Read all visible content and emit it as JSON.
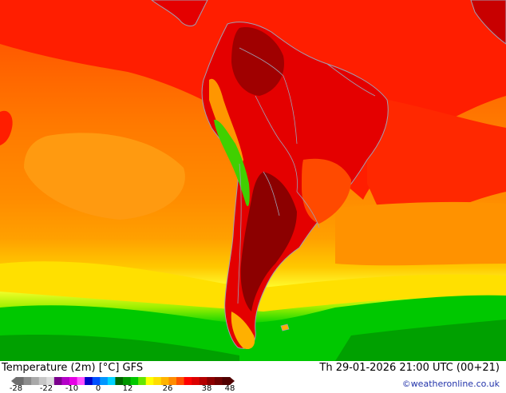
{
  "title": "Temperature (2m) [°C] GFS",
  "datetime": "Th 29-01-2026 21:00 UTC (00+21)",
  "credit": "©weatheronline.co.uk",
  "legend": {
    "ticks": [
      "-28",
      "-22",
      "-10",
      "0",
      "12",
      "26",
      "38",
      "48"
    ],
    "colors": [
      "#6e6e6e",
      "#8c8c8c",
      "#a9a9a9",
      "#c6c6c6",
      "#dcdcdc",
      "#7a008c",
      "#b400c8",
      "#e600e6",
      "#ff50ff",
      "#0000c8",
      "#0050ff",
      "#0096ff",
      "#00d2ff",
      "#006400",
      "#009600",
      "#00c800",
      "#64e600",
      "#ffff00",
      "#ffdc00",
      "#ffb400",
      "#ff8c00",
      "#ff5000",
      "#ff0000",
      "#dc0000",
      "#b40000",
      "#8c0000",
      "#6e0000",
      "#500000"
    ]
  },
  "map": {
    "region": "South America",
    "colors": {
      "ocean_warm": "#ff8c00",
      "ocean_hot": "#ff3c00",
      "ocean_tropical": "#ff1400",
      "land_hot": "#e00000",
      "land_very_hot": "#960000",
      "mild": "#ffc000",
      "cool": "#ffff00",
      "cold": "#00c800",
      "very_cold": "#009600",
      "border": "#9ea0b4"
    }
  }
}
